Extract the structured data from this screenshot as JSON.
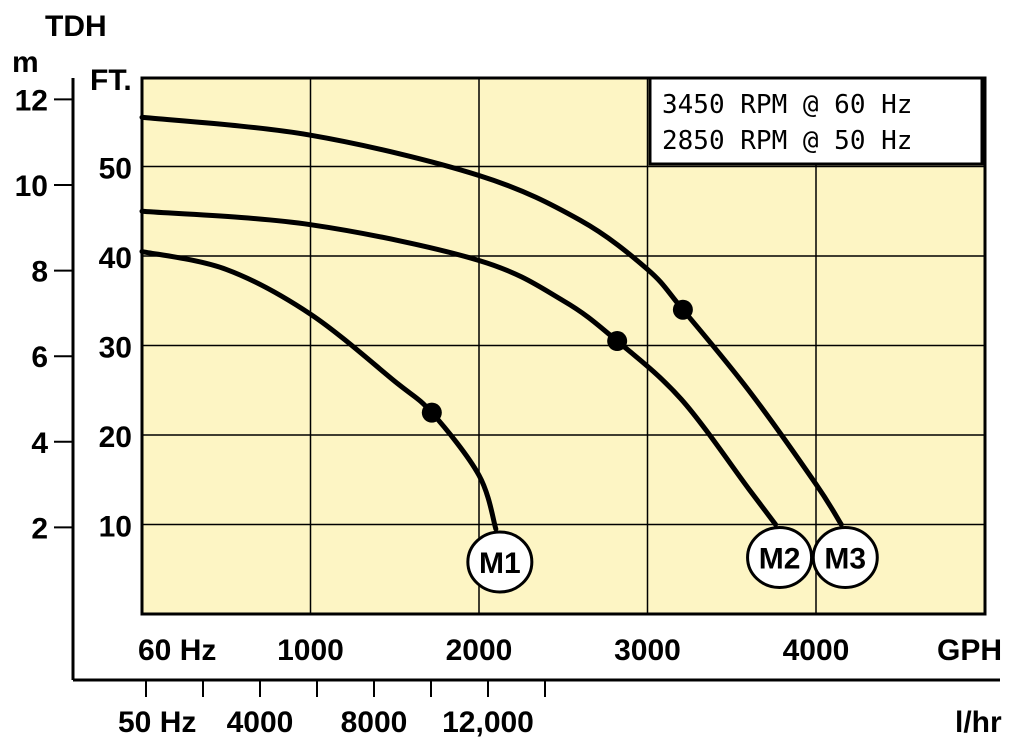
{
  "chart_data": {
    "type": "line",
    "y_left_title": "TDH",
    "y_left_unit": "m",
    "y_right_unit": "FT.",
    "x_top_label": "60 Hz",
    "x_top_unit": "GPH",
    "x_bottom_label": "50 Hz",
    "x_bottom_unit": "l/hr",
    "x_top_ticks": [
      "1000",
      "2000",
      "3000",
      "4000"
    ],
    "x_top_tick_values": [
      1000,
      2000,
      3000,
      4000
    ],
    "x_bottom_ticks": [
      "4000",
      "8000",
      "12,000"
    ],
    "x_bottom_tick_values": [
      4000,
      8000,
      12000
    ],
    "y_ft_ticks": [
      "10",
      "20",
      "30",
      "40",
      "50"
    ],
    "y_ft_tick_values": [
      10,
      20,
      30,
      40,
      50
    ],
    "y_m_ticks": [
      "2",
      "4",
      "6",
      "8",
      "10",
      "12"
    ],
    "y_m_tick_values": [
      2,
      4,
      6,
      8,
      10,
      12
    ],
    "xlim_gph": [
      0,
      5000
    ],
    "ylim_ft": [
      0,
      60
    ],
    "grid": true,
    "background_color": "#fdf5c4",
    "line_color": "#000000",
    "annotation": {
      "line1": "3450 RPM @ 60 Hz",
      "line2": "2850 RPM @ 50 Hz"
    },
    "series": [
      {
        "name": "M1",
        "x": [
          0,
          500,
          1000,
          1500,
          1720,
          2000,
          2100
        ],
        "y": [
          40.5,
          38.5,
          33.5,
          26,
          22.5,
          15.5,
          9.5
        ],
        "marker": [
          1720,
          22.5
        ]
      },
      {
        "name": "M2",
        "x": [
          0,
          1000,
          2000,
          2500,
          2820,
          3200,
          3600,
          3760
        ],
        "y": [
          45,
          43.5,
          39.5,
          35,
          30.5,
          24,
          14,
          10
        ],
        "marker": [
          2820,
          30.5
        ]
      },
      {
        "name": "M3",
        "x": [
          0,
          1000,
          2000,
          2600,
          3000,
          3210,
          3600,
          4000,
          4150
        ],
        "y": [
          55.5,
          53.5,
          49,
          44,
          38.5,
          34,
          25,
          14.5,
          10
        ],
        "marker": [
          3210,
          34
        ]
      }
    ]
  }
}
